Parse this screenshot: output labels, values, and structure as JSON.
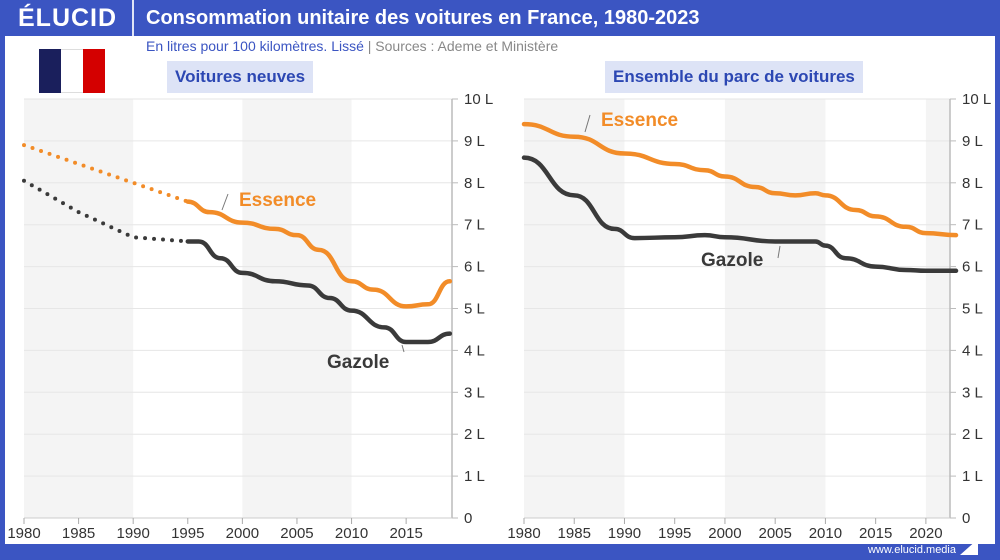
{
  "header": {
    "logo": "ÉLUCID",
    "title": "Consommation unitaire des voitures en France, 1980-2023"
  },
  "subtitle": {
    "note": "En litres pour 100 kilomètres. Lissé",
    "separator": "|",
    "sources": "Sources : Ademe et Ministère"
  },
  "flag": {
    "colors": [
      "#1a1f5c",
      "#ffffff",
      "#d40000"
    ]
  },
  "footer": {
    "url": "www.elucid.media"
  },
  "colors": {
    "essence": "#f28c28",
    "gazole": "#3a3a3a",
    "band": "#f4f4f4",
    "brand": "#3b55c2"
  },
  "chart_data": [
    {
      "type": "line",
      "title": "Voitures neuves",
      "ylim": [
        0,
        10
      ],
      "xlim": [
        1980,
        2019
      ],
      "yticks": [
        "0",
        "1 L",
        "2 L",
        "3 L",
        "4 L",
        "5 L",
        "6 L",
        "7 L",
        "8 L",
        "9 L",
        "10 L"
      ],
      "xticks": [
        "1980",
        "1985",
        "1990",
        "1995",
        "2000",
        "2005",
        "2010",
        "2015"
      ],
      "series": [
        {
          "name": "Essence",
          "dotted": {
            "x": [
              1980,
              1985,
              1990,
              1995
            ],
            "y": [
              8.9,
              8.45,
              8.0,
              7.55
            ]
          },
          "x": [
            1995,
            1997,
            2000,
            2003,
            2005,
            2007,
            2010,
            2012,
            2015,
            2017,
            2019
          ],
          "y": [
            7.55,
            7.3,
            7.05,
            6.9,
            6.75,
            6.4,
            5.65,
            5.45,
            5.05,
            5.1,
            5.65
          ]
        },
        {
          "name": "Gazole",
          "dotted": {
            "x": [
              1980,
              1985,
              1990,
              1995
            ],
            "y": [
              8.05,
              7.3,
              6.7,
              6.6
            ]
          },
          "x": [
            1995,
            1996,
            1998,
            2000,
            2003,
            2006,
            2008,
            2010,
            2013,
            2015,
            2017,
            2019
          ],
          "y": [
            6.6,
            6.6,
            6.2,
            5.85,
            5.65,
            5.55,
            5.25,
            4.95,
            4.55,
            4.2,
            4.2,
            4.4
          ]
        }
      ]
    },
    {
      "type": "line",
      "title": "Ensemble du parc de voitures",
      "ylim": [
        0,
        10
      ],
      "xlim": [
        1980,
        2023
      ],
      "yticks": [
        "0",
        "1 L",
        "2 L",
        "3 L",
        "4 L",
        "5 L",
        "6 L",
        "7 L",
        "8 L",
        "9 L",
        "10 L"
      ],
      "xticks": [
        "1980",
        "1985",
        "1990",
        "1995",
        "2000",
        "2005",
        "2010",
        "2015",
        "2020"
      ],
      "series": [
        {
          "name": "Essence",
          "x": [
            1980,
            1985,
            1990,
            1995,
            1998,
            2000,
            2003,
            2005,
            2007,
            2009,
            2010,
            2013,
            2015,
            2018,
            2020,
            2023
          ],
          "y": [
            9.4,
            9.1,
            8.7,
            8.45,
            8.3,
            8.15,
            7.9,
            7.75,
            7.7,
            7.75,
            7.7,
            7.35,
            7.2,
            6.95,
            6.8,
            6.75
          ]
        },
        {
          "name": "Gazole",
          "x": [
            1980,
            1985,
            1989,
            1991,
            1995,
            1998,
            2000,
            2005,
            2009,
            2010,
            2012,
            2015,
            2018,
            2020,
            2023
          ],
          "y": [
            8.6,
            7.7,
            6.9,
            6.68,
            6.7,
            6.75,
            6.7,
            6.6,
            6.6,
            6.5,
            6.2,
            6.0,
            5.92,
            5.9,
            5.9
          ]
        }
      ]
    }
  ]
}
